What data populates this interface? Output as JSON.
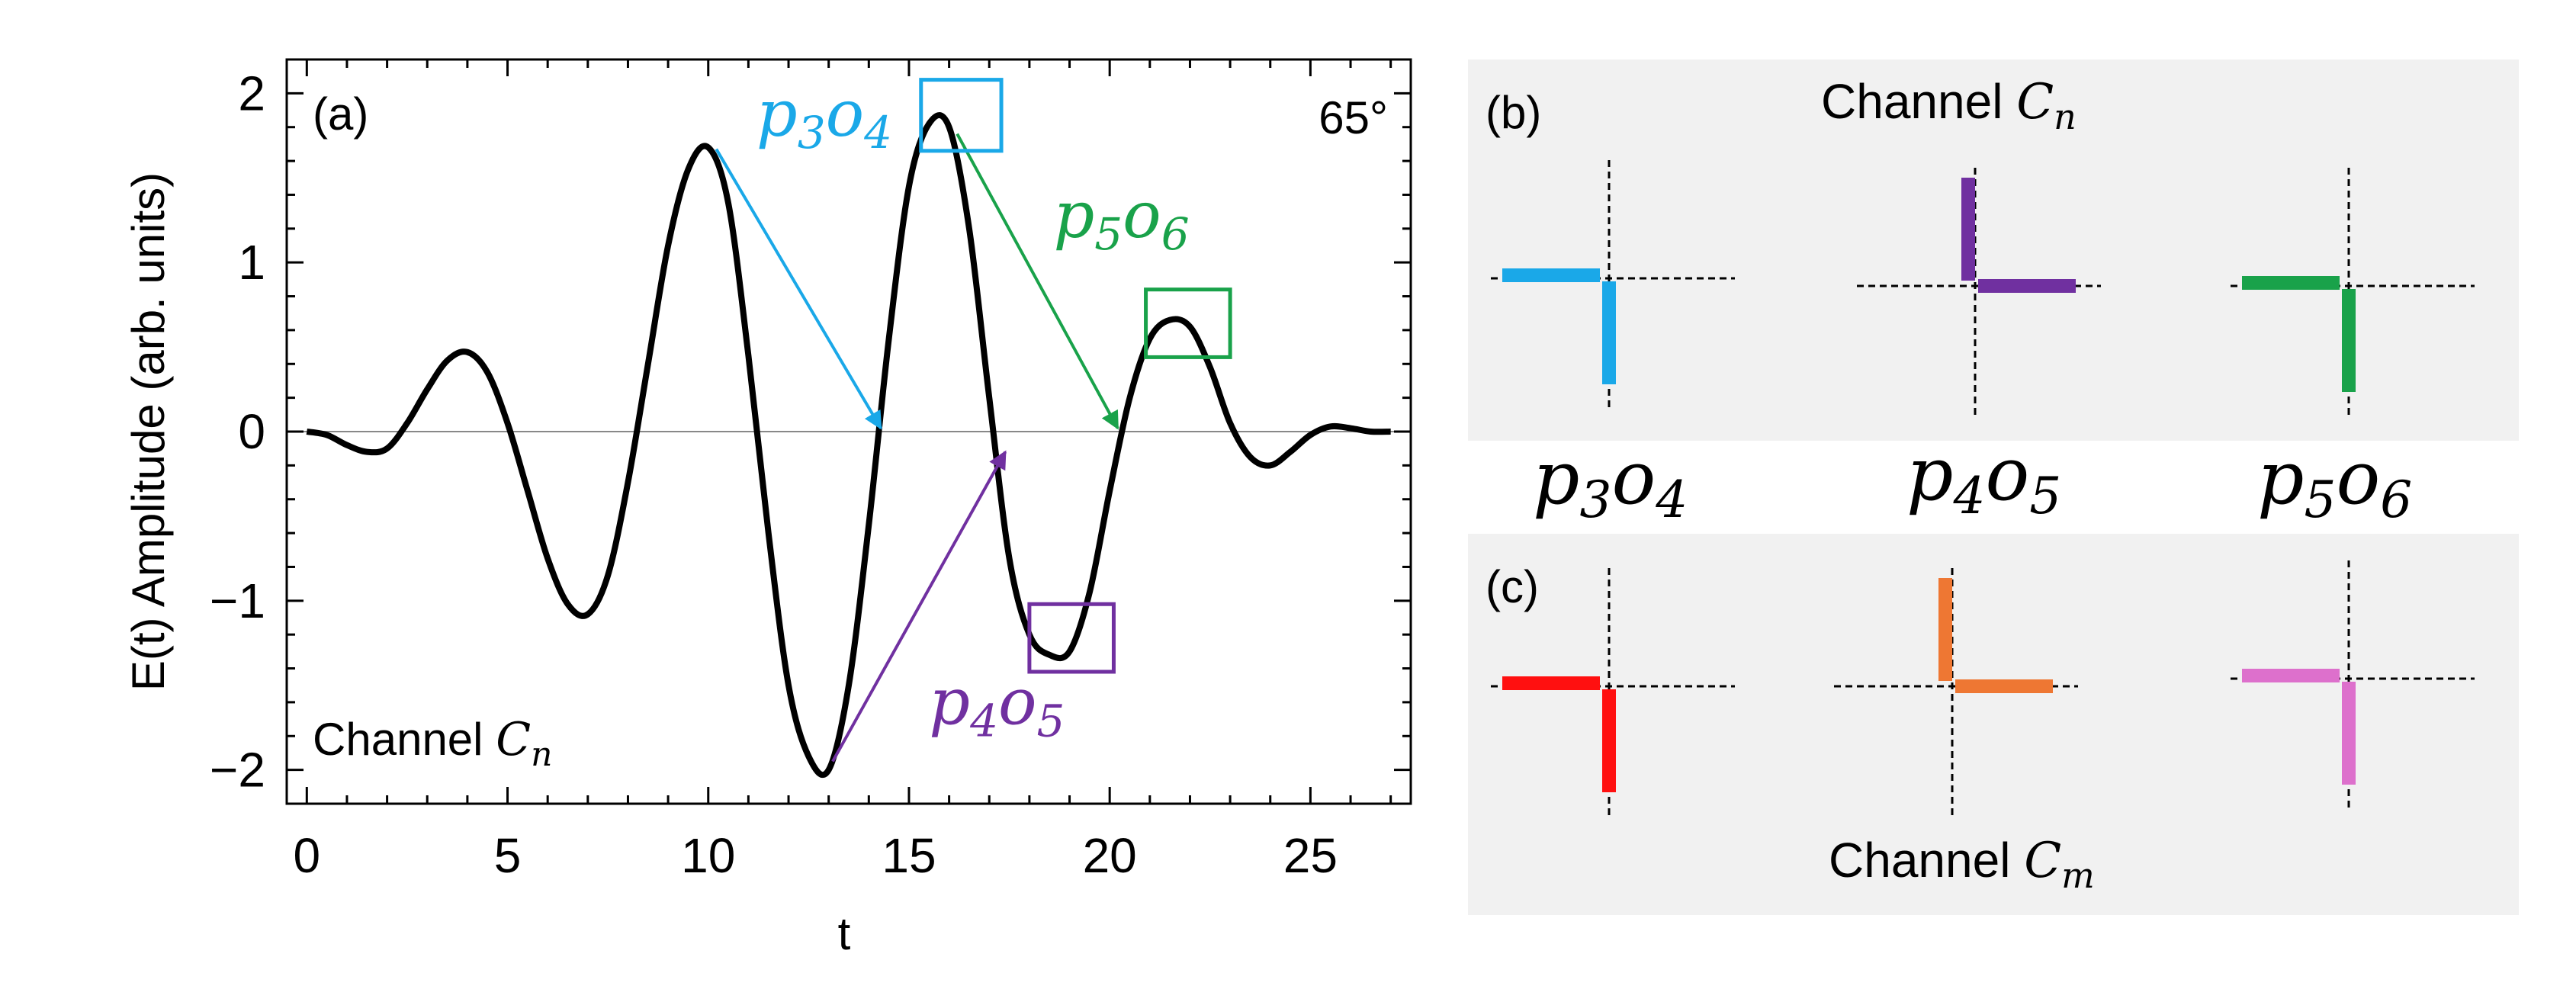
{
  "chart_data": {
    "type": "line",
    "panels": {
      "a": {
        "label": "(a)",
        "angle_label": "65°",
        "xlabel": "t",
        "ylabel": "E(t) Amplitude (arb. units)",
        "xlim": [
          -0.5,
          27.5
        ],
        "ylim": [
          -2.2,
          2.2
        ],
        "xticks": [
          0,
          5,
          10,
          15,
          20,
          25
        ],
        "yticks": [
          -2,
          -1,
          0,
          1,
          2
        ],
        "ytick_labels": [
          "−2",
          "−1",
          "0",
          "1",
          "2"
        ],
        "channel_text": "Channel ",
        "channel_sym": "C",
        "channel_sub": "n",
        "series": [
          {
            "name": "E(t)",
            "color": "#000000",
            "x": [
              0,
              0.5,
              1,
              1.5,
              2,
              2.5,
              3,
              3.5,
              4,
              4.5,
              5,
              5.5,
              6,
              6.5,
              7,
              7.5,
              8,
              8.5,
              9,
              9.5,
              10,
              10.5,
              11,
              11.5,
              12,
              12.5,
              13,
              13.5,
              14,
              14.5,
              15,
              15.5,
              16,
              16.5,
              17,
              17.5,
              18,
              18.5,
              19,
              19.5,
              20,
              20.5,
              21,
              21.5,
              22,
              22.5,
              23,
              23.5,
              24,
              24.5,
              25,
              25.5,
              26,
              26.5,
              27
            ],
            "y": [
              0,
              -0.02,
              -0.08,
              -0.12,
              -0.1,
              0.05,
              0.25,
              0.42,
              0.47,
              0.35,
              0.05,
              -0.35,
              -0.75,
              -1.02,
              -1.08,
              -0.85,
              -0.3,
              0.4,
              1.1,
              1.55,
              1.68,
              1.35,
              0.45,
              -0.6,
              -1.5,
              -1.92,
              -2.0,
              -1.5,
              -0.55,
              0.55,
              1.45,
              1.82,
              1.8,
              1.2,
              0.2,
              -0.75,
              -1.2,
              -1.32,
              -1.3,
              -0.95,
              -0.35,
              0.2,
              0.55,
              0.66,
              0.62,
              0.38,
              0.05,
              -0.15,
              -0.2,
              -0.12,
              -0.02,
              0.03,
              0.02,
              0,
              0
            ]
          }
        ],
        "arrows": [
          {
            "name": "p3o4",
            "color": "#1aa8e8",
            "from": [
              10.2,
              1.67
            ],
            "to": [
              14.3,
              0.02
            ]
          },
          {
            "name": "p4o5",
            "color": "#7030a0",
            "from": [
              13.1,
              -1.95
            ],
            "to": [
              17.4,
              -0.12
            ]
          },
          {
            "name": "p5o6",
            "color": "#19a24a",
            "from": [
              16.2,
              1.76
            ],
            "to": [
              20.2,
              0.02
            ]
          }
        ],
        "boxes": [
          {
            "name": "p3o4",
            "color": "#1aa8e8",
            "x": [
              15.3,
              17.3
            ],
            "y": [
              1.66,
              2.08
            ]
          },
          {
            "name": "p4o5",
            "color": "#7030a0",
            "x": [
              18.0,
              20.1
            ],
            "y": [
              -1.42,
              -1.02
            ]
          },
          {
            "name": "p5o6",
            "color": "#19a24a",
            "x": [
              20.9,
              23.0
            ],
            "y": [
              0.44,
              0.84
            ]
          }
        ],
        "pair_labels": [
          {
            "name": "p3o4",
            "color": "#1aa8e8",
            "p": "3",
            "o": "4",
            "at": [
              11.2,
              1.75
            ]
          },
          {
            "name": "p5o6",
            "color": "#19a24a",
            "p": "5",
            "o": "6",
            "at": [
              18.6,
              1.15
            ]
          },
          {
            "name": "p4o5",
            "color": "#7030a0",
            "p": "4",
            "o": "5",
            "at": [
              15.5,
              -1.73
            ]
          }
        ]
      },
      "b": {
        "label": "(b)",
        "channel_text": "Channel ",
        "channel_sym": "C",
        "channel_sub": "n",
        "items": [
          {
            "name": "p3o4",
            "p": "3",
            "o": "4",
            "color": "#1aa8e8",
            "shape": "left-down"
          },
          {
            "name": "p4o5",
            "p": "4",
            "o": "5",
            "color": "#7030a0",
            "shape": "up-right"
          },
          {
            "name": "p5o6",
            "p": "5",
            "o": "6",
            "color": "#19a24a",
            "shape": "left-down"
          }
        ]
      },
      "c": {
        "label": "(c)",
        "channel_text": "Channel ",
        "channel_sym": "C",
        "channel_sub": "m",
        "items": [
          {
            "name": "red",
            "color": "#ff1010",
            "shape": "left-down"
          },
          {
            "name": "orange",
            "color": "#ee7733",
            "shape": "up-right"
          },
          {
            "name": "pink",
            "color": "#dd70cc",
            "shape": "left-down"
          }
        ]
      }
    }
  }
}
